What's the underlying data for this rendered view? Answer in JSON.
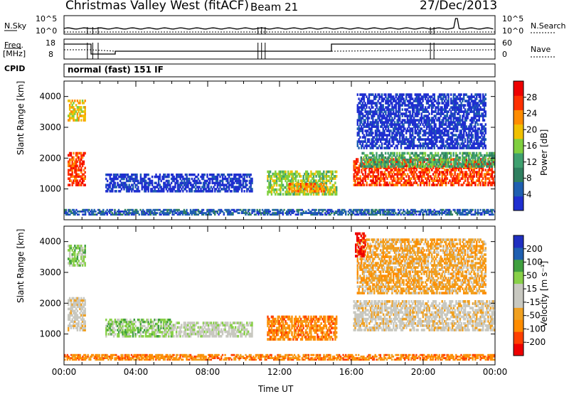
{
  "header": {
    "station": "Christmas Valley West (fitACF)",
    "beam": "Beam 21",
    "date": "27/Dec/2013"
  },
  "status_panels": {
    "nsky_label": "N.Sky",
    "nsky_ticks": [
      "10^5",
      "10^0"
    ],
    "nsearch_label": "N.Search",
    "nsearch_ticks": [
      "10^5",
      "10^0"
    ],
    "freq_label_1": "Freq.",
    "freq_label_2": "[MHz]",
    "freq_ticks": [
      "18",
      "8"
    ],
    "nave_label": "Nave",
    "nave_ticks": [
      "60",
      "0"
    ],
    "cpid_label": "CPID",
    "cpid_value": "normal (fast) 151 IF"
  },
  "colors": {
    "power": [
      "#1f2fd0",
      "#1f5fb0",
      "#2f7f5f",
      "#3fa06f",
      "#7fcf3f",
      "#f0c000",
      "#ff8c00",
      "#ff3000",
      "#ee0000"
    ],
    "velocity": [
      "#ee0000",
      "#ff4000",
      "#ff8c00",
      "#f0a020",
      "#c8c8c0",
      "#c8c8c0",
      "#88d048",
      "#3f9f3f",
      "#1f5fb0",
      "#1f2fc0"
    ]
  },
  "chart_data": [
    {
      "type": "heatmap",
      "name": "power",
      "ylabel": "Slant Range [km]",
      "yticks": [
        "1000",
        "2000",
        "3000",
        "4000"
      ],
      "ylim": [
        0,
        4500
      ],
      "xlim": [
        "00:00",
        "24:00"
      ],
      "colorbar_label": "Power [dB]",
      "colorbar_ticks": [
        "4",
        "8",
        "12",
        "16",
        "20",
        "24",
        "28"
      ],
      "bands": [
        {
          "t0": 0.2,
          "t1": 1.2,
          "r0": 1100,
          "r1": 2200,
          "level": 7
        },
        {
          "t0": 0.2,
          "t1": 1.2,
          "r0": 3200,
          "r1": 3900,
          "level": 5
        },
        {
          "t0": 2.3,
          "t1": 10.5,
          "r0": 900,
          "r1": 1500,
          "level": 0
        },
        {
          "t0": 11.3,
          "t1": 15.2,
          "r0": 800,
          "r1": 1600,
          "level": 4
        },
        {
          "t0": 12.5,
          "t1": 14.5,
          "r0": 900,
          "r1": 1200,
          "level": 6
        },
        {
          "t0": 16.1,
          "t1": 24.0,
          "r0": 1100,
          "r1": 2000,
          "level": 7
        },
        {
          "t0": 16.5,
          "t1": 24.0,
          "r0": 1700,
          "r1": 2200,
          "level": 3
        },
        {
          "t0": 16.3,
          "t1": 23.5,
          "r0": 2300,
          "r1": 4100,
          "level": 0
        },
        {
          "t0": 0.0,
          "t1": 24.0,
          "r0": 150,
          "r1": 350,
          "level": 1
        }
      ]
    },
    {
      "type": "heatmap",
      "name": "velocity",
      "ylabel": "Slant Range [km]",
      "yticks": [
        "1000",
        "2000",
        "3000",
        "4000"
      ],
      "ylim": [
        0,
        4500
      ],
      "xlim": [
        "00:00",
        "24:00"
      ],
      "xlabel": "Time UT",
      "xticks": [
        "00:00",
        "04:00",
        "08:00",
        "12:00",
        "16:00",
        "20:00",
        "00:00"
      ],
      "colorbar_label": "Velocity [m s⁻¹]",
      "colorbar_ticks": [
        "200",
        "100",
        "50",
        "15",
        "-15",
        "-50",
        "-100",
        "-200"
      ],
      "bands": [
        {
          "t0": 0.2,
          "t1": 1.2,
          "r0": 1100,
          "r1": 2200,
          "level": 4
        },
        {
          "t0": 0.2,
          "t1": 1.2,
          "r0": 3200,
          "r1": 3900,
          "level": 6
        },
        {
          "t0": 2.3,
          "t1": 6.0,
          "r0": 900,
          "r1": 1500,
          "level": 6
        },
        {
          "t0": 6.0,
          "t1": 10.5,
          "r0": 900,
          "r1": 1400,
          "level": 5
        },
        {
          "t0": 11.3,
          "t1": 15.2,
          "r0": 800,
          "r1": 1600,
          "level": 2
        },
        {
          "t0": 16.1,
          "t1": 24.0,
          "r0": 1100,
          "r1": 2100,
          "level": 4
        },
        {
          "t0": 16.3,
          "t1": 23.5,
          "r0": 2300,
          "r1": 4100,
          "level": 3
        },
        {
          "t0": 16.2,
          "t1": 16.8,
          "r0": 3500,
          "r1": 4300,
          "level": 0
        },
        {
          "t0": 0.0,
          "t1": 24.0,
          "r0": 150,
          "r1": 350,
          "level": 2
        }
      ]
    }
  ]
}
